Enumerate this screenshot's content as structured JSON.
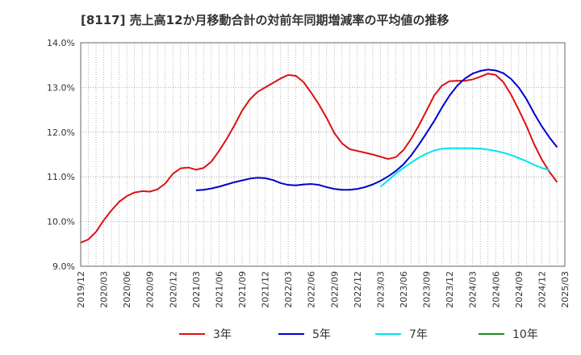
{
  "chart_data": {
    "type": "line",
    "title": "[8117]  売上高12か月移動合計の対前年同期増減率の平均値の推移",
    "y_ticks": [
      "9.0%",
      "10.0%",
      "11.0%",
      "12.0%",
      "13.0%",
      "14.0%"
    ],
    "ylim": [
      9.0,
      14.0
    ],
    "x_ticks": [
      "2019/12",
      "2020/03",
      "2020/06",
      "2020/09",
      "2020/12",
      "2021/03",
      "2021/06",
      "2021/09",
      "2021/12",
      "2022/03",
      "2022/06",
      "2022/09",
      "2022/12",
      "2023/03",
      "2023/06",
      "2023/09",
      "2023/12",
      "2024/03",
      "2024/06",
      "2024/09",
      "2024/12",
      "2025/03"
    ],
    "grid": true,
    "legend_position": "bottom",
    "series": [
      {
        "name": "3年",
        "color": "#dd1111",
        "start_index": 0,
        "values": [
          9.53,
          9.6,
          9.77,
          10.03,
          10.25,
          10.44,
          10.57,
          10.65,
          10.68,
          10.67,
          10.72,
          10.85,
          11.07,
          11.19,
          11.21,
          11.16,
          11.2,
          11.34,
          11.58,
          11.85,
          12.15,
          12.48,
          12.73,
          12.9,
          13.0,
          13.1,
          13.2,
          13.28,
          13.26,
          13.12,
          12.88,
          12.62,
          12.32,
          11.98,
          11.75,
          11.62,
          11.58,
          11.54,
          11.5,
          11.45,
          11.4,
          11.44,
          11.6,
          11.85,
          12.15,
          12.48,
          12.82,
          13.04,
          13.14,
          13.15,
          13.15,
          13.18,
          13.24,
          13.31,
          13.28,
          13.12,
          12.84,
          12.5,
          12.14,
          11.73,
          11.39,
          11.11,
          10.88
        ]
      },
      {
        "name": "5年",
        "color": "#0000cc",
        "start_index": 15,
        "values": [
          10.7,
          10.71,
          10.74,
          10.78,
          10.83,
          10.88,
          10.92,
          10.96,
          10.98,
          10.97,
          10.93,
          10.86,
          10.82,
          10.81,
          10.83,
          10.84,
          10.82,
          10.77,
          10.73,
          10.71,
          10.71,
          10.73,
          10.77,
          10.83,
          10.91,
          11.01,
          11.13,
          11.28,
          11.48,
          11.72,
          11.98,
          12.25,
          12.55,
          12.82,
          13.04,
          13.2,
          13.31,
          13.37,
          13.4,
          13.38,
          13.32,
          13.19,
          13.0,
          12.74,
          12.42,
          12.13,
          11.88,
          11.66
        ]
      },
      {
        "name": "7年",
        "color": "#00e5ee",
        "start_index": 39,
        "values": [
          10.78,
          10.92,
          11.07,
          11.2,
          11.32,
          11.43,
          11.52,
          11.59,
          11.63,
          11.64,
          11.64,
          11.64,
          11.64,
          11.63,
          11.61,
          11.58,
          11.54,
          11.49,
          11.42,
          11.35,
          11.27,
          11.2,
          11.15
        ]
      },
      {
        "name": "10年",
        "color": "#228b22",
        "start_index": 0,
        "values": []
      }
    ]
  }
}
